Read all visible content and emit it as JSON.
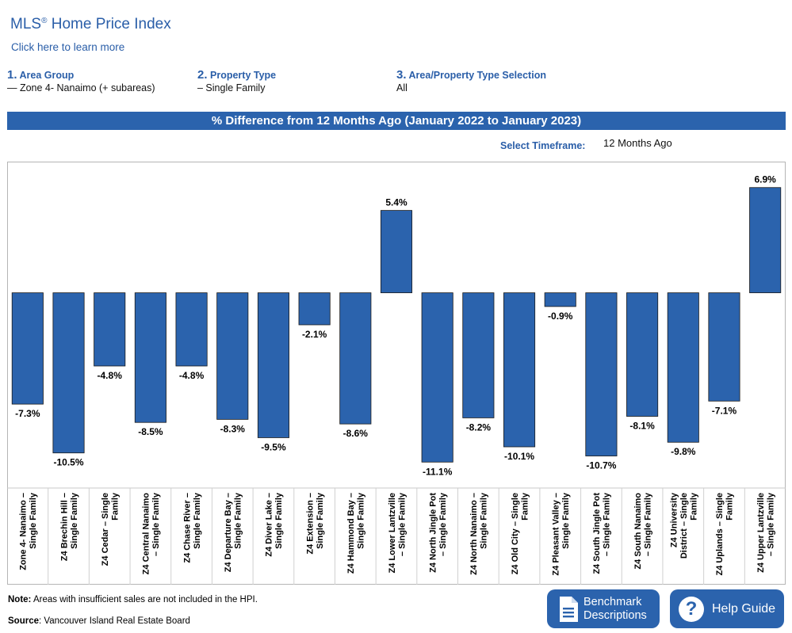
{
  "header": {
    "title": "MLS",
    "title_sup": "®",
    "title_rest": " Home Price Index",
    "learn_more": "Click here to learn more"
  },
  "selectors": [
    {
      "num": "1.",
      "label": "Area Group",
      "value": "— Zone 4- Nanaimo (+ subareas)"
    },
    {
      "num": "2.",
      "label": "Property Type",
      "value": "– Single Family"
    },
    {
      "num": "3.",
      "label": "Area/Property Type Selection",
      "value": "All"
    }
  ],
  "banner": "% Difference from 12 Months Ago (January 2022 to January 2023)",
  "timeframe": {
    "label": "Select Timeframe:",
    "value": "12 Months Ago"
  },
  "footer": {
    "note_label": "Note:",
    "note_text": " Areas with insufficient sales are not included in the HPI.",
    "source_label": "Source",
    "source_text": ": Vancouver Island Real Estate Board"
  },
  "buttons": {
    "benchmark_line1": "Benchmark",
    "benchmark_line2": "Descriptions",
    "benchmark_icon": "document-icon",
    "help": "Help Guide",
    "help_icon": "question-mark-icon",
    "help_glyph": "?"
  },
  "chart_data": {
    "type": "bar",
    "bar_color": "#2b63ad",
    "categories": [
      "Zone 4- Nanaimo – Single Family",
      "Z4 Brechin Hill – Single Family",
      "Z4 Cedar – Single Family",
      "Z4 Central Nanaimo – Single Family",
      "Z4 Chase River – Single Family",
      "Z4 Departure Bay – Single Family",
      "Z4 Diver Lake – Single Family",
      "Z4 Extension – Single Family",
      "Z4 Hammond Bay – Single Family",
      "Z4 Lower Lantzville – Single Family",
      "Z4 North Jingle Pot – Single Family",
      "Z4 North Nanaimo – Single Family",
      "Z4 Old City – Single Family",
      "Z4 Pleasant Valley – Single Family",
      "Z4 South Jingle Pot – Single Family",
      "Z4 South Nanaimo – Single Family",
      "Z4 University District – Single Family",
      "Z4 Uplands – Single Family",
      "Z4 Upper Lantzville – Single Family"
    ],
    "label_lines": [
      [
        "Zone 4- Nanaimo –",
        "Single Family"
      ],
      [
        "Z4 Brechin Hill –",
        "Single Family"
      ],
      [
        "Z4 Cedar – Single",
        "Family"
      ],
      [
        "Z4 Central Nanaimo",
        "– Single Family"
      ],
      [
        "Z4 Chase River –",
        "Single Family"
      ],
      [
        "Z4 Departure Bay –",
        "Single Family"
      ],
      [
        "Z4 Diver Lake –",
        "Single Family"
      ],
      [
        "Z4 Extension –",
        "Single Family"
      ],
      [
        "Z4 Hammond Bay –",
        "Single Family"
      ],
      [
        "Z4 Lower Lantzville",
        "– Single Family"
      ],
      [
        "Z4 North Jingle Pot",
        "– Single Family"
      ],
      [
        "Z4 North Nanaimo –",
        "Single Family"
      ],
      [
        "Z4 Old City – Single",
        "Family"
      ],
      [
        "Z4 Pleasant Valley –",
        "Single Family"
      ],
      [
        "Z4 South Jingle Pot",
        "– Single Family"
      ],
      [
        "Z4 South Nanaimo",
        "– Single Family"
      ],
      [
        "Z4 University",
        "District – Single",
        "Family"
      ],
      [
        "Z4 Uplands – Single",
        "Family"
      ],
      [
        "Z4 Upper Lantzville",
        "– Single Family"
      ]
    ],
    "values": [
      -7.3,
      -10.5,
      -4.8,
      -8.5,
      -4.8,
      -8.3,
      -9.5,
      -2.1,
      -8.6,
      5.4,
      -11.1,
      -8.2,
      -10.1,
      -0.9,
      -10.7,
      -8.1,
      -9.8,
      -7.1,
      6.9
    ],
    "value_labels": [
      "-7.3%",
      "-10.5%",
      "-4.8%",
      "-8.5%",
      "-4.8%",
      "-8.3%",
      "-9.5%",
      "-2.1%",
      "-8.6%",
      "5.4%",
      "-11.1%",
      "-8.2%",
      "-10.1%",
      "-0.9%",
      "-10.7%",
      "-8.1%",
      "-9.8%",
      "-7.1%",
      "6.9%"
    ],
    "ylim": [
      -12.8,
      8.6
    ],
    "grid": false,
    "title": "",
    "xlabel": "",
    "ylabel": ""
  }
}
